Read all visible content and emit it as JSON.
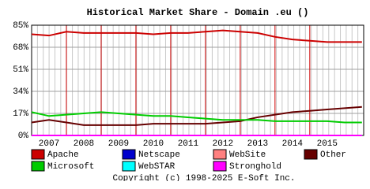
{
  "chart_data": {
    "type": "line",
    "title": "Historical Market Share - Domain .eu ()",
    "x": [
      2007.0,
      2007.5,
      2008.0,
      2008.5,
      2009.0,
      2009.5,
      2010.0,
      2010.5,
      2011.0,
      2011.5,
      2012.0,
      2012.5,
      2013.0,
      2013.5,
      2014.0,
      2014.5,
      2015.0,
      2015.5,
      2016.0,
      2016.5
    ],
    "series": [
      {
        "name": "Apache",
        "color": "#cc0000",
        "values": [
          78,
          77,
          80,
          79,
          79,
          79,
          79,
          78,
          79,
          79,
          80,
          81,
          80,
          79,
          76,
          74,
          73,
          72,
          72,
          72
        ]
      },
      {
        "name": "Netscape",
        "color": "#0000cc",
        "values": [
          0,
          0,
          0,
          0,
          0,
          0,
          0,
          0,
          0,
          0,
          0,
          0,
          0,
          0,
          0,
          0,
          0,
          0,
          0,
          0
        ]
      },
      {
        "name": "WebSite",
        "color": "#ff8080",
        "values": [
          0,
          0,
          0,
          0,
          0,
          0,
          0,
          0,
          0,
          0,
          0,
          0,
          0,
          0,
          0,
          0,
          0,
          0,
          0,
          0
        ]
      },
      {
        "name": "Other",
        "color": "#660000",
        "values": [
          10,
          12,
          10,
          8,
          8,
          8,
          8,
          9,
          9,
          9,
          9,
          10,
          11,
          14,
          16,
          18,
          19,
          20,
          21,
          22
        ]
      },
      {
        "name": "Microsoft",
        "color": "#00cc00",
        "values": [
          18,
          15,
          16,
          17,
          18,
          17,
          16,
          15,
          15,
          14,
          13,
          12,
          12,
          12,
          11,
          11,
          11,
          11,
          10,
          10
        ]
      },
      {
        "name": "WebSTAR",
        "color": "#00ffff",
        "values": [
          0,
          0,
          0,
          0,
          0,
          0,
          0,
          0,
          0,
          0,
          0,
          0,
          0,
          0,
          0,
          0,
          0,
          0,
          0,
          0
        ]
      },
      {
        "name": "Stronghold",
        "color": "#ff00ff",
        "values": [
          0,
          0,
          0,
          0,
          0,
          0,
          0,
          0,
          0,
          0,
          0,
          0,
          0,
          0,
          0,
          0,
          0,
          0,
          0,
          0
        ]
      }
    ],
    "xlim": [
      2007.0,
      2016.55
    ],
    "xticks": [
      {
        "value": 2007,
        "label": "2007"
      },
      {
        "value": 2008,
        "label": "2008"
      },
      {
        "value": 2009,
        "label": "2009"
      },
      {
        "value": 2010,
        "label": "2010"
      },
      {
        "value": 2011,
        "label": "2011"
      },
      {
        "value": 2012,
        "label": "2012"
      },
      {
        "value": 2013,
        "label": "2013"
      },
      {
        "value": 2014,
        "label": "2014"
      },
      {
        "value": 2015,
        "label": "2015"
      }
    ],
    "ylim": [
      0,
      85
    ],
    "yticks": [
      {
        "value": 0,
        "label": "0%"
      },
      {
        "value": 17,
        "label": "17%"
      },
      {
        "value": 34,
        "label": "34%"
      },
      {
        "value": 51,
        "label": "51%"
      },
      {
        "value": 68,
        "label": "68%"
      },
      {
        "value": 85,
        "label": "85%"
      }
    ],
    "grid": true,
    "year_line_color": "#cc0000",
    "footer": "Copyright (c) 1998-2025 E-Soft Inc."
  }
}
